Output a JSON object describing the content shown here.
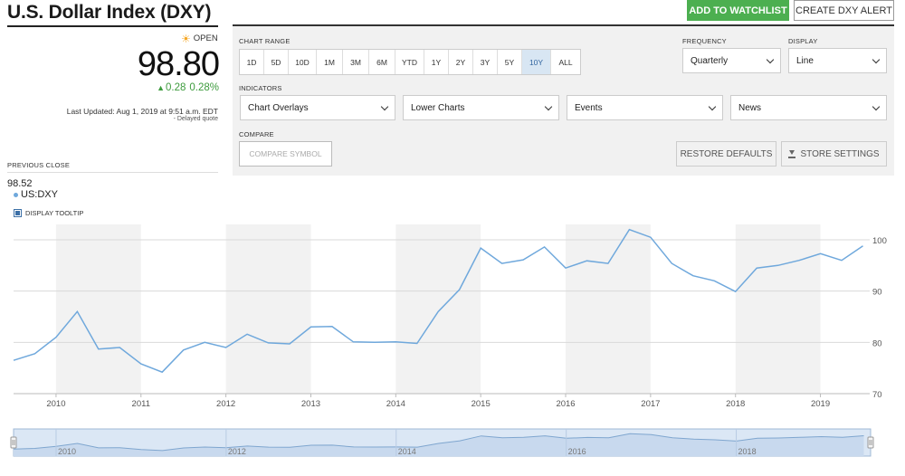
{
  "header": {
    "title": "U.S. Dollar Index (DXY)",
    "watchlist_label": "ADD TO WATCHLIST",
    "alert_label": "CREATE DXY ALERT"
  },
  "quote": {
    "status": "OPEN",
    "price": "98.80",
    "change": "0.28",
    "change_pct": "0.28%",
    "last_updated": "Last Updated: Aug 1, 2019 at 9:51 a.m. EDT",
    "delayed": "Delayed quote",
    "previous_close_label": "PREVIOUS CLOSE",
    "previous_close": "98.52"
  },
  "panel": {
    "chart_range_label": "CHART RANGE",
    "ranges": [
      "1D",
      "5D",
      "10D",
      "1M",
      "3M",
      "6M",
      "YTD",
      "1Y",
      "2Y",
      "3Y",
      "5Y",
      "10Y",
      "ALL"
    ],
    "active_range": "10Y",
    "frequency_label": "FREQUENCY",
    "frequency_value": "Quarterly",
    "display_label": "DISPLAY",
    "display_value": "Line",
    "indicators_label": "INDICATORS",
    "indicators": [
      "Chart Overlays",
      "Lower Charts",
      "Events",
      "News"
    ],
    "compare_label": "COMPARE",
    "compare_placeholder": "COMPARE SYMBOL",
    "restore_label": "RESTORE DEFAULTS",
    "store_label": "STORE SETTINGS"
  },
  "legend": {
    "series_name": "US:DXY",
    "tooltip_label": "DISPLAY TOOLTIP"
  },
  "colors": {
    "accent_green": "#4caf50",
    "line_blue": "#6fa8dc",
    "up_green": "#3d9b3d"
  },
  "chart_data": {
    "type": "line",
    "series": [
      {
        "name": "US:DXY",
        "x": [
          2009.5,
          2009.75,
          2010.0,
          2010.25,
          2010.5,
          2010.75,
          2011.0,
          2011.25,
          2011.5,
          2011.75,
          2012.0,
          2012.25,
          2012.5,
          2012.75,
          2013.0,
          2013.25,
          2013.5,
          2013.75,
          2014.0,
          2014.25,
          2014.5,
          2014.75,
          2015.0,
          2015.25,
          2015.5,
          2015.75,
          2016.0,
          2016.25,
          2016.5,
          2016.75,
          2017.0,
          2017.25,
          2017.5,
          2017.75,
          2018.0,
          2018.25,
          2018.5,
          2018.75,
          2019.0,
          2019.25,
          2019.5
        ],
        "y": [
          76.5,
          77.8,
          81.0,
          86.0,
          78.7,
          79.0,
          75.8,
          74.2,
          78.5,
          80.0,
          79.0,
          81.6,
          79.9,
          79.7,
          83.0,
          83.1,
          80.1,
          80.0,
          80.1,
          79.8,
          86.0,
          90.3,
          98.4,
          95.4,
          96.1,
          98.6,
          94.5,
          95.9,
          95.4,
          102.0,
          100.5,
          95.4,
          93.0,
          92.0,
          89.9,
          94.5,
          95.0,
          96.0,
          97.3,
          96.0,
          98.8
        ]
      }
    ],
    "xlim": [
      2009.5,
      2019.58
    ],
    "ylim": [
      70,
      103
    ],
    "x_ticks": [
      "2010",
      "2011",
      "2012",
      "2013",
      "2014",
      "2015",
      "2016",
      "2017",
      "2018",
      "2019"
    ],
    "y_ticks": [
      "100",
      "90",
      "80",
      "70"
    ],
    "navigator_ticks": [
      "2010",
      "2012",
      "2014",
      "2016",
      "2018"
    ],
    "grid": true,
    "alternating_year_bands": true
  }
}
